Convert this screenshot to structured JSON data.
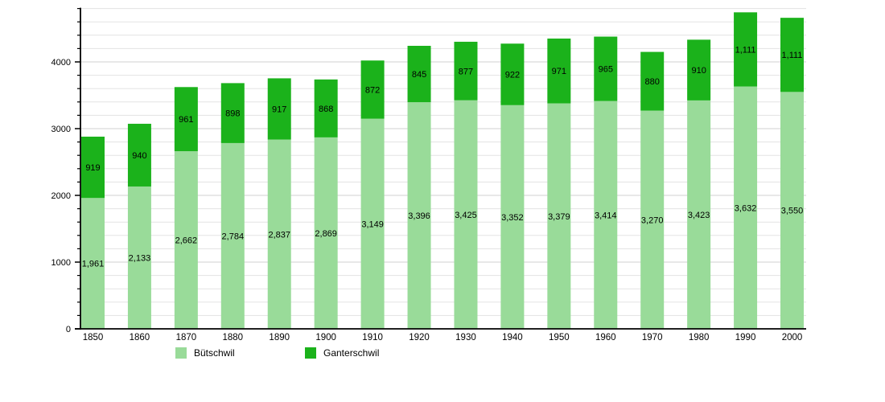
{
  "chart_data": {
    "type": "bar",
    "stacked": true,
    "title": "",
    "xlabel": "",
    "ylabel": "",
    "categories": [
      "1850",
      "1860",
      "1870",
      "1880",
      "1890",
      "1900",
      "1910",
      "1920",
      "1930",
      "1940",
      "1950",
      "1960",
      "1970",
      "1980",
      "1990",
      "2000"
    ],
    "series": [
      {
        "name": "Bütschwil",
        "color": "#99DB99",
        "values": [
          1961,
          2133,
          2662,
          2784,
          2837,
          2869,
          3149,
          3396,
          3425,
          3352,
          3379,
          3414,
          3270,
          3423,
          3632,
          3550
        ],
        "labels": [
          "1,961",
          "2,133",
          "2,662",
          "2,784",
          "2,837",
          "2,869",
          "3,149",
          "3,396",
          "3,425",
          "3,352",
          "3,379",
          "3,414",
          "3,270",
          "3,423",
          "3,632",
          "3,550"
        ]
      },
      {
        "name": "Ganterschwil",
        "color": "#1BB21B",
        "values": [
          919,
          940,
          961,
          898,
          917,
          868,
          872,
          845,
          877,
          922,
          971,
          965,
          880,
          910,
          1111,
          1111
        ],
        "labels": [
          "919",
          "940",
          "961",
          "898",
          "917",
          "868",
          "872",
          "845",
          "877",
          "922",
          "971",
          "965",
          "880",
          "910",
          "1,111",
          "1,111"
        ]
      }
    ],
    "ylim": [
      0,
      4800
    ],
    "yticks_labeled": [
      {
        "value": 0,
        "label": "0"
      },
      {
        "value": 1000,
        "label": "1000"
      },
      {
        "value": 2000,
        "label": "2000"
      },
      {
        "value": 3000,
        "label": "3000"
      },
      {
        "value": 4000,
        "label": "4000"
      }
    ],
    "ytick_minor_step": 200,
    "grid": "horizontal",
    "legend_position": "bottom",
    "colors": {
      "grid_minor": "#e3e3e3",
      "grid_major": "#d2d2d2",
      "axis": "#000000",
      "label_text": "#000000"
    }
  }
}
